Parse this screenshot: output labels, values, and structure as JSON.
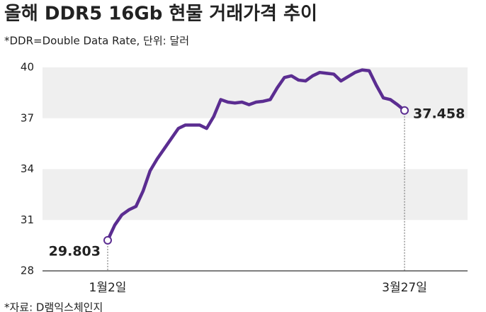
{
  "chart_data": {
    "type": "line",
    "title": "올해 DDR5 16Gb 현물 거래가격 추이",
    "subtitle": "*DDR=Double Data Rate, 단위: 달러",
    "source": "*자료: D램익스체인지",
    "categories": [
      "1월2일",
      null,
      null,
      null,
      null,
      null,
      null,
      null,
      null,
      null,
      null,
      null,
      null,
      null,
      null,
      null,
      null,
      null,
      null,
      null,
      null,
      null,
      null,
      null,
      null,
      null,
      null,
      null,
      null,
      null,
      null,
      null,
      null,
      null,
      null,
      null,
      null,
      null,
      null,
      null,
      null,
      null,
      "3월27일"
    ],
    "series": [
      {
        "name": "DDR5 16Gb",
        "color": "#5b2d91",
        "values": [
          29.803,
          30.7,
          31.3,
          31.6,
          31.8,
          32.7,
          33.9,
          34.6,
          35.2,
          35.8,
          36.4,
          36.6,
          36.6,
          36.6,
          36.4,
          37.1,
          38.1,
          37.95,
          37.9,
          37.95,
          37.8,
          37.95,
          38.0,
          38.1,
          38.8,
          39.4,
          39.5,
          39.25,
          39.2,
          39.5,
          39.7,
          39.65,
          39.6,
          39.2,
          39.45,
          39.7,
          39.85,
          39.8,
          38.95,
          38.2,
          38.1,
          37.8,
          37.458
        ]
      }
    ],
    "ylim": [
      28,
      40
    ],
    "yticks": [
      28,
      31,
      34,
      37,
      40
    ],
    "grid": true
  }
}
